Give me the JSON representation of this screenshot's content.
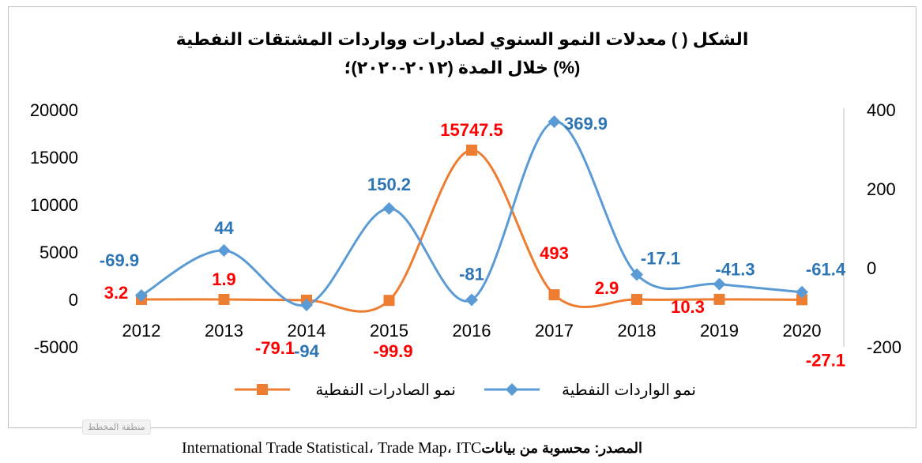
{
  "chart_data": {
    "type": "line",
    "title_line1": "الشكل (  ) معدلات النمو السنوي لصادرات وواردات المشتقات النفطية",
    "title_line2": "خلال المدة (٢٠١٢-٢٠٢٠)؛ (%)",
    "categories": [
      "2012",
      "2013",
      "2014",
      "2015",
      "2016",
      "2017",
      "2018",
      "2019",
      "2020"
    ],
    "series": [
      {
        "name": "نمو الصادرات النفطية",
        "axis": "left",
        "color": "#ED7D31",
        "label_color": "#FF0000",
        "marker": "square",
        "values": [
          3.2,
          1.9,
          -79.1,
          -99.9,
          15747.5,
          493,
          2.9,
          10.3,
          -27.1
        ],
        "labels": [
          "3.2",
          "1.9",
          "-79.1",
          "-99.9",
          "15747.5",
          "493",
          "2.9",
          "10.3",
          "-27.1"
        ]
      },
      {
        "name": "نمو الواردات النفطية",
        "axis": "right",
        "color": "#5B9BD5",
        "label_color": "#2E75B6",
        "marker": "diamond",
        "values": [
          -69.9,
          44,
          -94,
          150.2,
          -81,
          369.9,
          -17.1,
          -41.3,
          -61.4
        ],
        "labels": [
          "-69.9",
          "44",
          "-94",
          "150.2",
          "-81",
          "369.9",
          "-17.1",
          "-41.3",
          "-61.4"
        ]
      }
    ],
    "y_left": {
      "min": -5000,
      "max": 20000,
      "ticks": [
        "20000",
        "15000",
        "10000",
        "5000",
        "0",
        "-5000"
      ]
    },
    "y_right": {
      "min": -200,
      "max": 400,
      "ticks": [
        "400",
        "200",
        "0",
        "-200"
      ]
    },
    "legend_position": "bottom",
    "grid": false
  },
  "footer": {
    "source_label": "المصدر: محسوبة من بيانات",
    "source_text": "International Trade Statistical، Trade Map، ITC",
    "watermark": "منطقة المخطط"
  }
}
